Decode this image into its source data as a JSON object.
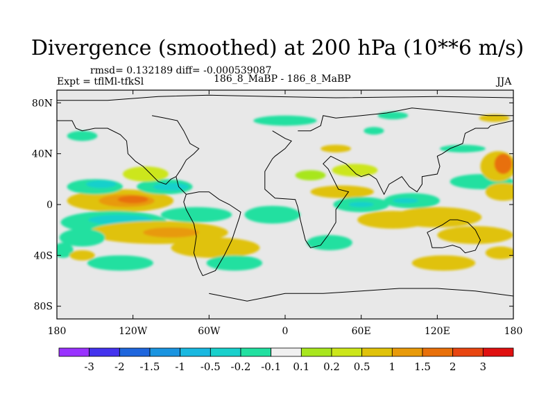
{
  "chart_data": {
    "type": "heatmap",
    "title": "Divergence (smoothed) at 200 hPa (10**6 m/s)",
    "stats_line": "rmsd= 0.132189 diff= -0.000539087",
    "experiment_label": "Expt = tflMl-tfkSl",
    "case_label": "186_8_MaBP - 186_8_MaBP",
    "season": "JJA",
    "x_ticks": [
      "180",
      "120W",
      "60W",
      "0",
      "60E",
      "120E",
      "180"
    ],
    "x_tick_values": [
      -180,
      -120,
      -60,
      0,
      60,
      120,
      180
    ],
    "y_ticks": [
      "80N",
      "40N",
      "0",
      "40S",
      "80S"
    ],
    "y_tick_values": [
      80,
      40,
      0,
      -40,
      -80
    ],
    "xlim": [
      -180,
      180
    ],
    "ylim": [
      -90,
      90
    ],
    "colorbar_labels": [
      "-3",
      "-2",
      "-1.5",
      "-1",
      "-0.5",
      "-0.2",
      "-0.1",
      "0.1",
      "0.2",
      "0.5",
      "1",
      "1.5",
      "2",
      "3"
    ],
    "colorbar_colors": [
      "#9933ff",
      "#4433ee",
      "#1f66dd",
      "#1a94e0",
      "#19b8e0",
      "#19d0cc",
      "#22e0a0",
      "#f0f0f0",
      "#a8e61e",
      "#cce61a",
      "#e0c20a",
      "#e89a0a",
      "#e8700a",
      "#e84510",
      "#e01010"
    ],
    "anomaly_blobs": [
      {
        "lon": -130,
        "lat": 3,
        "rx": 42,
        "ry": 9,
        "level": 10
      },
      {
        "lon": -125,
        "lat": 3,
        "rx": 22,
        "ry": 5,
        "level": 11
      },
      {
        "lon": -120,
        "lat": 4,
        "rx": 12,
        "ry": 3,
        "level": 12
      },
      {
        "lon": -95,
        "lat": 14,
        "rx": 22,
        "ry": 6,
        "level": 6
      },
      {
        "lon": -90,
        "lat": 14,
        "rx": 14,
        "ry": 3,
        "level": 5
      },
      {
        "lon": -150,
        "lat": 14,
        "rx": 22,
        "ry": 6,
        "level": 6
      },
      {
        "lon": -145,
        "lat": 16,
        "rx": 12,
        "ry": 3,
        "level": 5
      },
      {
        "lon": -110,
        "lat": 24,
        "rx": 18,
        "ry": 6,
        "level": 9
      },
      {
        "lon": -135,
        "lat": -14,
        "rx": 42,
        "ry": 9,
        "level": 6
      },
      {
        "lon": -130,
        "lat": -12,
        "rx": 25,
        "ry": 4,
        "level": 5
      },
      {
        "lon": -100,
        "lat": -22,
        "rx": 55,
        "ry": 9,
        "level": 10
      },
      {
        "lon": -90,
        "lat": -22,
        "rx": 22,
        "ry": 4,
        "level": 11
      },
      {
        "lon": -160,
        "lat": -26,
        "rx": 18,
        "ry": 7,
        "level": 6
      },
      {
        "lon": -70,
        "lat": -8,
        "rx": 28,
        "ry": 6,
        "level": 6
      },
      {
        "lon": -55,
        "lat": -34,
        "rx": 35,
        "ry": 8,
        "level": 10
      },
      {
        "lon": -40,
        "lat": -46,
        "rx": 22,
        "ry": 6,
        "level": 6
      },
      {
        "lon": -130,
        "lat": -46,
        "rx": 26,
        "ry": 6,
        "level": 6
      },
      {
        "lon": -10,
        "lat": -8,
        "rx": 22,
        "ry": 7,
        "level": 6
      },
      {
        "lon": 35,
        "lat": -30,
        "rx": 18,
        "ry": 6,
        "level": 6
      },
      {
        "lon": 45,
        "lat": 10,
        "rx": 25,
        "ry": 5,
        "level": 10
      },
      {
        "lon": 60,
        "lat": 0,
        "rx": 22,
        "ry": 6,
        "level": 6
      },
      {
        "lon": 60,
        "lat": 0,
        "rx": 10,
        "ry": 2,
        "level": 5
      },
      {
        "lon": 20,
        "lat": 23,
        "rx": 12,
        "ry": 4,
        "level": 8
      },
      {
        "lon": 55,
        "lat": 27,
        "rx": 18,
        "ry": 5,
        "level": 9
      },
      {
        "lon": 85,
        "lat": -12,
        "rx": 28,
        "ry": 7,
        "level": 10
      },
      {
        "lon": 100,
        "lat": 3,
        "rx": 22,
        "ry": 6,
        "level": 6
      },
      {
        "lon": 95,
        "lat": 3,
        "rx": 10,
        "ry": 2,
        "level": 5
      },
      {
        "lon": 120,
        "lat": -10,
        "rx": 35,
        "ry": 8,
        "level": 10
      },
      {
        "lon": 150,
        "lat": -24,
        "rx": 30,
        "ry": 7,
        "level": 10
      },
      {
        "lon": 155,
        "lat": 18,
        "rx": 25,
        "ry": 6,
        "level": 6
      },
      {
        "lon": 168,
        "lat": 30,
        "rx": 14,
        "ry": 12,
        "level": 10
      },
      {
        "lon": 172,
        "lat": 32,
        "rx": 7,
        "ry": 8,
        "level": 12
      },
      {
        "lon": 172,
        "lat": 10,
        "rx": 14,
        "ry": 7,
        "level": 10
      },
      {
        "lon": 85,
        "lat": 70,
        "rx": 12,
        "ry": 3,
        "level": 6
      },
      {
        "lon": 165,
        "lat": 68,
        "rx": 12,
        "ry": 3,
        "level": 10
      },
      {
        "lon": -160,
        "lat": 54,
        "rx": 12,
        "ry": 4,
        "level": 6
      },
      {
        "lon": 0,
        "lat": 66,
        "rx": 25,
        "ry": 4,
        "level": 6
      },
      {
        "lon": 40,
        "lat": 44,
        "rx": 12,
        "ry": 3,
        "level": 10
      },
      {
        "lon": 140,
        "lat": 44,
        "rx": 18,
        "ry": 3,
        "level": 6
      },
      {
        "lon": 70,
        "lat": 58,
        "rx": 8,
        "ry": 3,
        "level": 6
      },
      {
        "lon": -175,
        "lat": -36,
        "rx": 8,
        "ry": 6,
        "level": 6
      },
      {
        "lon": -160,
        "lat": -40,
        "rx": 10,
        "ry": 4,
        "level": 10
      },
      {
        "lon": 125,
        "lat": -46,
        "rx": 25,
        "ry": 6,
        "level": 10
      },
      {
        "lon": 170,
        "lat": -38,
        "rx": 12,
        "ry": 5,
        "level": 10
      }
    ],
    "coastline_lonlat": [
      [
        [
          -180,
          82
        ],
        [
          -140,
          82
        ],
        [
          -100,
          85
        ],
        [
          -60,
          86
        ],
        [
          -10,
          85
        ],
        [
          40,
          84
        ],
        [
          120,
          85
        ],
        [
          180,
          84
        ]
      ],
      [
        [
          -105,
          70
        ],
        [
          -95,
          68
        ],
        [
          -85,
          66
        ],
        [
          -80,
          58
        ],
        [
          -75,
          48
        ],
        [
          -68,
          44
        ],
        [
          -72,
          40
        ],
        [
          -78,
          35
        ],
        [
          -82,
          28
        ],
        [
          -86,
          22
        ],
        [
          -84,
          14
        ],
        [
          -78,
          8
        ],
        [
          -80,
          2
        ],
        [
          -78,
          -4
        ],
        [
          -72,
          -15
        ],
        [
          -70,
          -25
        ],
        [
          -72,
          -38
        ],
        [
          -68,
          -50
        ],
        [
          -65,
          -56
        ]
      ],
      [
        [
          -65,
          -56
        ],
        [
          -55,
          -52
        ],
        [
          -48,
          -40
        ],
        [
          -42,
          -28
        ],
        [
          -36,
          -10
        ],
        [
          -35,
          -6
        ],
        [
          -44,
          0
        ],
        [
          -52,
          4
        ],
        [
          -60,
          10
        ],
        [
          -68,
          10
        ],
        [
          -78,
          8
        ]
      ],
      [
        [
          -10,
          58
        ],
        [
          0,
          52
        ],
        [
          5,
          50
        ],
        [
          0,
          44
        ],
        [
          -8,
          38
        ],
        [
          -10,
          36
        ],
        [
          -16,
          26
        ],
        [
          -16,
          12
        ],
        [
          -8,
          5
        ],
        [
          8,
          4
        ],
        [
          10,
          -2
        ],
        [
          12,
          -12
        ],
        [
          16,
          -28
        ],
        [
          20,
          -34
        ],
        [
          28,
          -32
        ],
        [
          34,
          -24
        ],
        [
          40,
          -14
        ],
        [
          40,
          -4
        ],
        [
          50,
          10
        ],
        [
          42,
          12
        ],
        [
          34,
          28
        ],
        [
          30,
          32
        ],
        [
          36,
          38
        ],
        [
          48,
          32
        ],
        [
          56,
          24
        ],
        [
          60,
          22
        ],
        [
          66,
          24
        ],
        [
          72,
          20
        ],
        [
          78,
          8
        ],
        [
          82,
          16
        ],
        [
          92,
          22
        ],
        [
          98,
          14
        ],
        [
          104,
          10
        ],
        [
          108,
          16
        ],
        [
          108,
          22
        ],
        [
          120,
          24
        ],
        [
          122,
          30
        ],
        [
          120,
          38
        ],
        [
          124,
          40
        ],
        [
          130,
          44
        ],
        [
          140,
          48
        ],
        [
          142,
          56
        ],
        [
          150,
          60
        ],
        [
          160,
          60
        ],
        [
          162,
          62
        ],
        [
          180,
          66
        ]
      ],
      [
        [
          10,
          58
        ],
        [
          20,
          58
        ],
        [
          28,
          62
        ],
        [
          30,
          70
        ],
        [
          40,
          68
        ],
        [
          60,
          70
        ],
        [
          80,
          72
        ],
        [
          100,
          76
        ],
        [
          120,
          74
        ],
        [
          140,
          72
        ],
        [
          160,
          70
        ],
        [
          180,
          70
        ]
      ],
      [
        [
          -180,
          66
        ],
        [
          -168,
          66
        ],
        [
          -165,
          60
        ],
        [
          -160,
          58
        ],
        [
          -150,
          60
        ],
        [
          -140,
          60
        ],
        [
          -130,
          55
        ],
        [
          -125,
          50
        ],
        [
          -124,
          40
        ],
        [
          -118,
          34
        ],
        [
          -112,
          30
        ],
        [
          -106,
          24
        ],
        [
          -100,
          18
        ],
        [
          -94,
          16
        ],
        [
          -90,
          20
        ],
        [
          -86,
          22
        ]
      ],
      [
        [
          112,
          -22
        ],
        [
          114,
          -26
        ],
        [
          116,
          -34
        ],
        [
          124,
          -34
        ],
        [
          132,
          -32
        ],
        [
          138,
          -34
        ],
        [
          142,
          -38
        ],
        [
          150,
          -36
        ],
        [
          154,
          -28
        ],
        [
          150,
          -20
        ],
        [
          144,
          -14
        ],
        [
          136,
          -12
        ],
        [
          130,
          -12
        ],
        [
          124,
          -16
        ],
        [
          116,
          -20
        ],
        [
          112,
          -22
        ]
      ],
      [
        [
          -60,
          -70
        ],
        [
          -30,
          -76
        ],
        [
          0,
          -70
        ],
        [
          30,
          -70
        ],
        [
          60,
          -68
        ],
        [
          90,
          -66
        ],
        [
          120,
          -66
        ],
        [
          150,
          -68
        ],
        [
          180,
          -72
        ]
      ]
    ]
  }
}
